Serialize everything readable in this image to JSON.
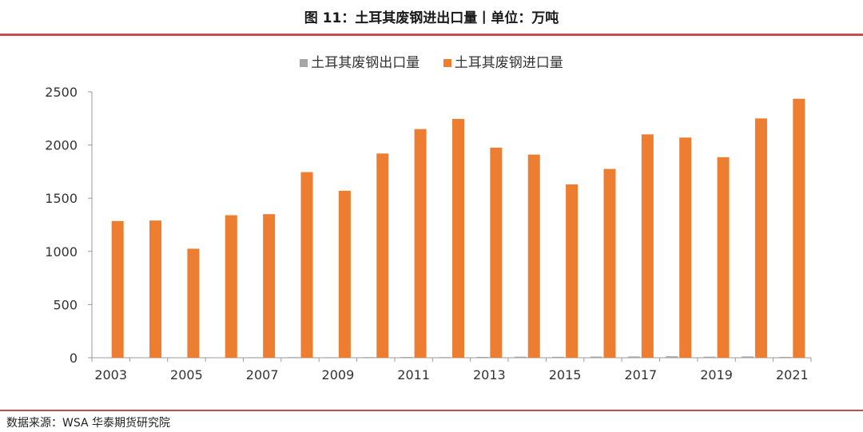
{
  "header": {
    "title": "图 11：土耳其废钢进出口量丨单位：万吨"
  },
  "footer": {
    "source": "数据来源：WSA 华泰期货研究院"
  },
  "chart_data": {
    "type": "bar",
    "title": "图 11：土耳其废钢进出口量丨单位：万吨",
    "xlabel": "",
    "ylabel": "",
    "ylim": [
      0,
      2500
    ],
    "yticks": [
      "0",
      "500",
      "1000",
      "1500",
      "2000",
      "2500"
    ],
    "ytick_values": [
      0,
      500,
      1000,
      1500,
      2000,
      2500
    ],
    "categories": [
      "2003",
      "2004",
      "2005",
      "2006",
      "2007",
      "2008",
      "2009",
      "2010",
      "2011",
      "2012",
      "2013",
      "2014",
      "2015",
      "2016",
      "2017",
      "2018",
      "2019",
      "2020",
      "2021"
    ],
    "xtick_labels": [
      "2003",
      "",
      "2005",
      "",
      "2007",
      "",
      "2009",
      "",
      "2011",
      "",
      "2013",
      "",
      "2015",
      "",
      "2017",
      "",
      "2019",
      "",
      "2021"
    ],
    "legend_position": "top-center",
    "series": [
      {
        "name": "土耳其废钢出口量",
        "color": "#a5a5a5",
        "values": [
          3,
          4,
          3,
          4,
          5,
          6,
          5,
          6,
          7,
          6,
          8,
          10,
          9,
          11,
          12,
          14,
          10,
          12,
          8
        ]
      },
      {
        "name": "土耳其废钢进口量",
        "color": "#ed7d31",
        "values": [
          1285,
          1290,
          1025,
          1340,
          1350,
          1745,
          1570,
          1920,
          2150,
          2245,
          1975,
          1910,
          1630,
          1775,
          2100,
          2070,
          1885,
          2250,
          2435
        ]
      }
    ]
  }
}
